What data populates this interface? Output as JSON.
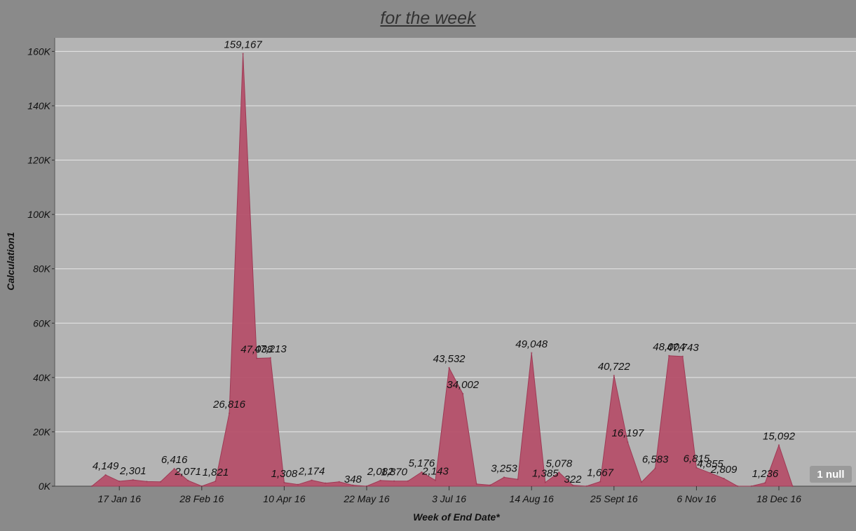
{
  "chart_data": {
    "type": "area",
    "title": "for the week",
    "xlabel": "Week of End Date*",
    "ylabel": "Calculation1",
    "y_ticks": [
      "0K",
      "20K",
      "40K",
      "60K",
      "80K",
      "100K",
      "120K",
      "140K",
      "160K"
    ],
    "y_tick_values": [
      0,
      20000,
      40000,
      60000,
      80000,
      100000,
      120000,
      140000,
      160000
    ],
    "ylim": [
      0,
      165000
    ],
    "x_ticks": [
      "17 Jan 16",
      "28 Feb 16",
      "10 Apr 16",
      "22 May 16",
      "3 Jul 16",
      "14 Aug 16",
      "25 Sept 16",
      "6 Nov 16",
      "18 Dec 16"
    ],
    "grid": true,
    "area_color": "#b5506a",
    "weeks": [
      "3 Jan 16",
      "10 Jan 16",
      "17 Jan 16",
      "24 Jan 16",
      "31 Jan 16",
      "7 Feb 16",
      "14 Feb 16",
      "21 Feb 16",
      "28 Feb 16",
      "6 Mar 16",
      "13 Mar 16",
      "20 Mar 16",
      "27 Mar 16",
      "3 Apr 16",
      "10 Apr 16",
      "17 Apr 16",
      "24 Apr 16",
      "1 May 16",
      "8 May 16",
      "15 May 16",
      "22 May 16",
      "29 May 16",
      "5 Jun 16",
      "12 Jun 16",
      "19 Jun 16",
      "26 Jun 16",
      "3 Jul 16",
      "10 Jul 16",
      "17 Jul 16",
      "24 Jul 16",
      "31 Jul 16",
      "7 Aug 16",
      "14 Aug 16",
      "21 Aug 16",
      "28 Aug 16",
      "4 Sept 16",
      "11 Sept 16",
      "18 Sept 16",
      "25 Sept 16",
      "2 Oct 16",
      "9 Oct 16",
      "16 Oct 16",
      "23 Oct 16",
      "30 Oct 16",
      "6 Nov 16",
      "13 Nov 16",
      "20 Nov 16",
      "27 Nov 16",
      "4 Dec 16",
      "11 Dec 16",
      "18 Dec 16",
      "25 Dec 16"
    ],
    "values": [
      0,
      4149,
      1800,
      2301,
      1700,
      1600,
      6416,
      2071,
      0,
      1821,
      26816,
      159167,
      47038,
      47213,
      1308,
      600,
      2174,
      1100,
      1600,
      348,
      0,
      2082,
      1870,
      1870,
      5176,
      2143,
      43532,
      34002,
      800,
      400,
      3253,
      2500,
      49048,
      1385,
      5078,
      322,
      0,
      1667,
      40722,
      16197,
      1500,
      6583,
      48004,
      47743,
      6815,
      4855,
      2809,
      0,
      0,
      1236,
      15092,
      0
    ],
    "labels": [
      "",
      "4,149",
      "",
      "2,301",
      "",
      "",
      "6,416",
      "2,071",
      "",
      "1,821",
      "26,816",
      "159,167",
      "47,038",
      "47,213",
      "1,308",
      "",
      "2,174",
      "",
      "",
      "348",
      "",
      "2,082",
      "1,870",
      "",
      "5,176",
      "2,143",
      "43,532",
      "34,002",
      "",
      "",
      "3,253",
      "",
      "49,048",
      "1,385",
      "5,078",
      "322",
      "",
      "1,667",
      "40,722",
      "16,197",
      "",
      "6,583",
      "48,004",
      "47,743",
      "6,815",
      "4,855",
      "2,809",
      "",
      "",
      "1,236",
      "15,092",
      ""
    ],
    "null_indicator": "1 null"
  }
}
